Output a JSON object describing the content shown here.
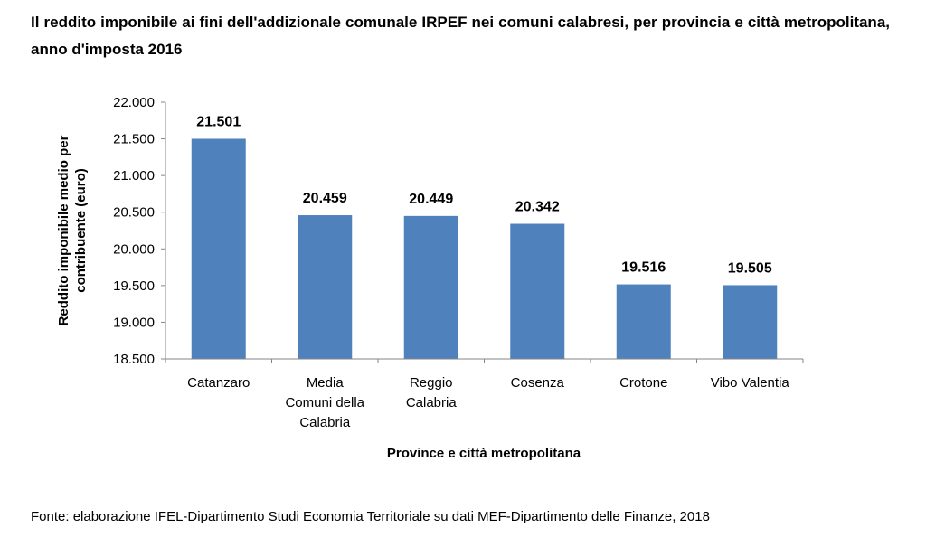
{
  "title": "Il reddito imponibile ai fini dell'addizionale comunale IRPEF nei comuni calabresi, per provincia e città metropolitana, anno d'imposta 2016",
  "source": "Fonte: elaborazione IFEL-Dipartimento Studi Economia Territoriale su dati MEF-Dipartimento delle Finanze, 2018",
  "chart_data": {
    "type": "bar",
    "categories": [
      [
        "Catanzaro"
      ],
      [
        "Media",
        "Comuni della",
        "Calabria"
      ],
      [
        "Reggio",
        "Calabria"
      ],
      [
        "Cosenza"
      ],
      [
        "Crotone"
      ],
      [
        "Vibo Valentia"
      ]
    ],
    "values": [
      21501,
      20459,
      20449,
      20342,
      19516,
      19505
    ],
    "value_labels": [
      "21.501",
      "20.459",
      "20.449",
      "20.342",
      "19.516",
      "19.505"
    ],
    "ylim": [
      18500,
      22000
    ],
    "yticks": [
      18500,
      19000,
      19500,
      20000,
      20500,
      21000,
      21500,
      22000
    ],
    "ytick_labels": [
      "18.500",
      "19.000",
      "19.500",
      "20.000",
      "20.500",
      "21.000",
      "21.500",
      "22.000"
    ],
    "ylabel_lines": [
      "Reddito imponibile medio per",
      "contribuente (euro)"
    ],
    "xlabel": "Province e città metropolitana",
    "bar_color": "#4f81bd",
    "grid": false,
    "legend": false
  }
}
